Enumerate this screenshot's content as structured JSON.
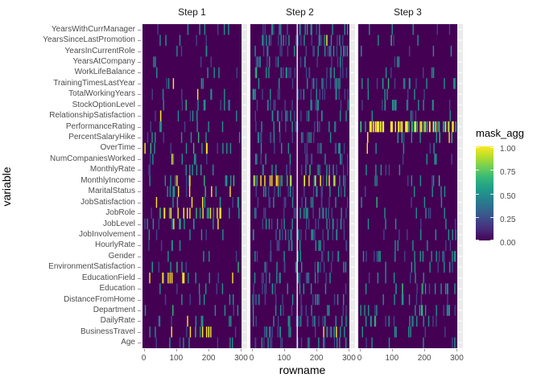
{
  "chart_data": {
    "type": "heatmap",
    "title": "",
    "x_label": "rowname",
    "y_label": "variable",
    "legend_title": "mask_agg",
    "legend_ticks": [
      {
        "value": 1.0,
        "label": "1.00"
      },
      {
        "value": 0.75,
        "label": "0.75"
      },
      {
        "value": 0.5,
        "label": "0.50"
      },
      {
        "value": 0.25,
        "label": "0.25"
      },
      {
        "value": 0.0,
        "label": "0.00"
      }
    ],
    "legend_position": "right",
    "facets": [
      "Step 1",
      "Step 2",
      "Step 3"
    ],
    "x_ticks": [
      0,
      100,
      200,
      300
    ],
    "x_range": [
      0,
      300
    ],
    "variables_top_to_bottom": [
      "YearsWithCurrManager",
      "YearsSinceLastPromotion",
      "YearsInCurrentRole",
      "YearsAtCompany",
      "WorkLifeBalance",
      "TrainingTimesLastYear",
      "TotalWorkingYears",
      "StockOptionLevel",
      "RelationshipSatisfaction",
      "PerformanceRating",
      "PercentSalaryHike",
      "OverTime",
      "NumCompaniesWorked",
      "MonthlyRate",
      "MonthlyIncome",
      "MaritalStatus",
      "JobSatisfaction",
      "JobRole",
      "JobLevel",
      "JobInvolvement",
      "HourlyRate",
      "Gender",
      "EnvironmentSatisfaction",
      "EducationField",
      "Education",
      "DistanceFromHome",
      "Department",
      "DailyRate",
      "BusinessTravel",
      "Age"
    ],
    "colors": {
      "tile_zero": "#440154",
      "panel_background": "#ebebeb",
      "grid_line": "#ffffff",
      "axis_text": "#4d4d4d",
      "viridis_stops": [
        "#440154",
        "#482878",
        "#3e4989",
        "#31688e",
        "#26828e",
        "#1f9e89",
        "#35b779",
        "#6ece58",
        "#b5de2b",
        "#fde725"
      ]
    },
    "value_buckets": [
      0.25,
      0.5,
      0.75,
      1.0
    ],
    "bucket_colors": [
      "#414487",
      "#21918c",
      "#35b779",
      "#fde725"
    ],
    "mark_counts_per_row": {
      "Step 1": [
        [
          2,
          5,
          0,
          0
        ],
        [
          2,
          3,
          0,
          0
        ],
        [
          1,
          3,
          0,
          0
        ],
        [
          2,
          2,
          0,
          0
        ],
        [
          1,
          4,
          0,
          0
        ],
        [
          1,
          3,
          0,
          1
        ],
        [
          2,
          4,
          0,
          1
        ],
        [
          3,
          6,
          1,
          0
        ],
        [
          2,
          5,
          0,
          1
        ],
        [
          2,
          5,
          0,
          0
        ],
        [
          2,
          6,
          1,
          0
        ],
        [
          2,
          6,
          2,
          3
        ],
        [
          2,
          5,
          0,
          1
        ],
        [
          3,
          6,
          0,
          0
        ],
        [
          2,
          8,
          2,
          2
        ],
        [
          2,
          6,
          1,
          4
        ],
        [
          2,
          6,
          1,
          3
        ],
        [
          2,
          8,
          3,
          12
        ],
        [
          3,
          7,
          1,
          2
        ],
        [
          2,
          4,
          0,
          0
        ],
        [
          2,
          3,
          0,
          0
        ],
        [
          1,
          3,
          0,
          0
        ],
        [
          2,
          4,
          2,
          0
        ],
        [
          1,
          4,
          2,
          8
        ],
        [
          2,
          4,
          0,
          0
        ],
        [
          2,
          5,
          0,
          0
        ],
        [
          1,
          4,
          1,
          0
        ],
        [
          3,
          6,
          0,
          1
        ],
        [
          2,
          5,
          1,
          6
        ],
        [
          3,
          5,
          0,
          0
        ]
      ],
      "Step 2": [
        [
          12,
          12,
          0,
          0
        ],
        [
          15,
          12,
          0,
          1
        ],
        [
          14,
          10,
          0,
          0
        ],
        [
          10,
          6,
          0,
          0
        ],
        [
          12,
          8,
          1,
          0
        ],
        [
          10,
          8,
          0,
          0
        ],
        [
          12,
          8,
          0,
          0
        ],
        [
          10,
          6,
          0,
          0
        ],
        [
          12,
          8,
          0,
          0
        ],
        [
          8,
          6,
          1,
          0
        ],
        [
          10,
          6,
          0,
          0
        ],
        [
          8,
          6,
          0,
          0
        ],
        [
          10,
          6,
          0,
          0
        ],
        [
          10,
          8,
          1,
          0
        ],
        [
          4,
          6,
          6,
          14
        ],
        [
          12,
          8,
          0,
          0
        ],
        [
          10,
          6,
          0,
          0
        ],
        [
          14,
          10,
          0,
          0
        ],
        [
          12,
          8,
          0,
          0
        ],
        [
          14,
          10,
          0,
          0
        ],
        [
          10,
          6,
          0,
          0
        ],
        [
          8,
          6,
          0,
          0
        ],
        [
          10,
          8,
          0,
          0
        ],
        [
          12,
          8,
          0,
          0
        ],
        [
          8,
          6,
          0,
          0
        ],
        [
          10,
          8,
          0,
          0
        ],
        [
          8,
          6,
          0,
          0
        ],
        [
          12,
          10,
          0,
          0
        ],
        [
          12,
          10,
          0,
          2
        ],
        [
          12,
          8,
          0,
          0
        ]
      ],
      "Step 3": [
        [
          2,
          3,
          0,
          0
        ],
        [
          1,
          2,
          1,
          0
        ],
        [
          1,
          3,
          0,
          0
        ],
        [
          1,
          2,
          0,
          0
        ],
        [
          2,
          3,
          0,
          0
        ],
        [
          4,
          12,
          1,
          0
        ],
        [
          2,
          4,
          0,
          0
        ],
        [
          4,
          12,
          0,
          0
        ],
        [
          2,
          3,
          0,
          0
        ],
        [
          0,
          8,
          16,
          40
        ],
        [
          2,
          6,
          2,
          3
        ],
        [
          1,
          3,
          0,
          1
        ],
        [
          2,
          4,
          0,
          0
        ],
        [
          2,
          4,
          0,
          0
        ],
        [
          2,
          5,
          1,
          0
        ],
        [
          2,
          4,
          0,
          0
        ],
        [
          1,
          3,
          1,
          0
        ],
        [
          2,
          4,
          0,
          0
        ],
        [
          2,
          4,
          0,
          0
        ],
        [
          3,
          5,
          0,
          0
        ],
        [
          2,
          4,
          0,
          0
        ],
        [
          6,
          14,
          0,
          0
        ],
        [
          3,
          6,
          0,
          0
        ],
        [
          2,
          5,
          0,
          0
        ],
        [
          4,
          10,
          2,
          0
        ],
        [
          3,
          5,
          0,
          0
        ],
        [
          5,
          12,
          2,
          0
        ],
        [
          5,
          10,
          1,
          0
        ],
        [
          2,
          5,
          0,
          0
        ],
        [
          2,
          4,
          0,
          0
        ]
      ]
    },
    "missing_columns": {
      "Step 2": [
        139
      ]
    },
    "render_seeds": {
      "Step 1": 101,
      "Step 2": 202,
      "Step 3": 303
    }
  }
}
